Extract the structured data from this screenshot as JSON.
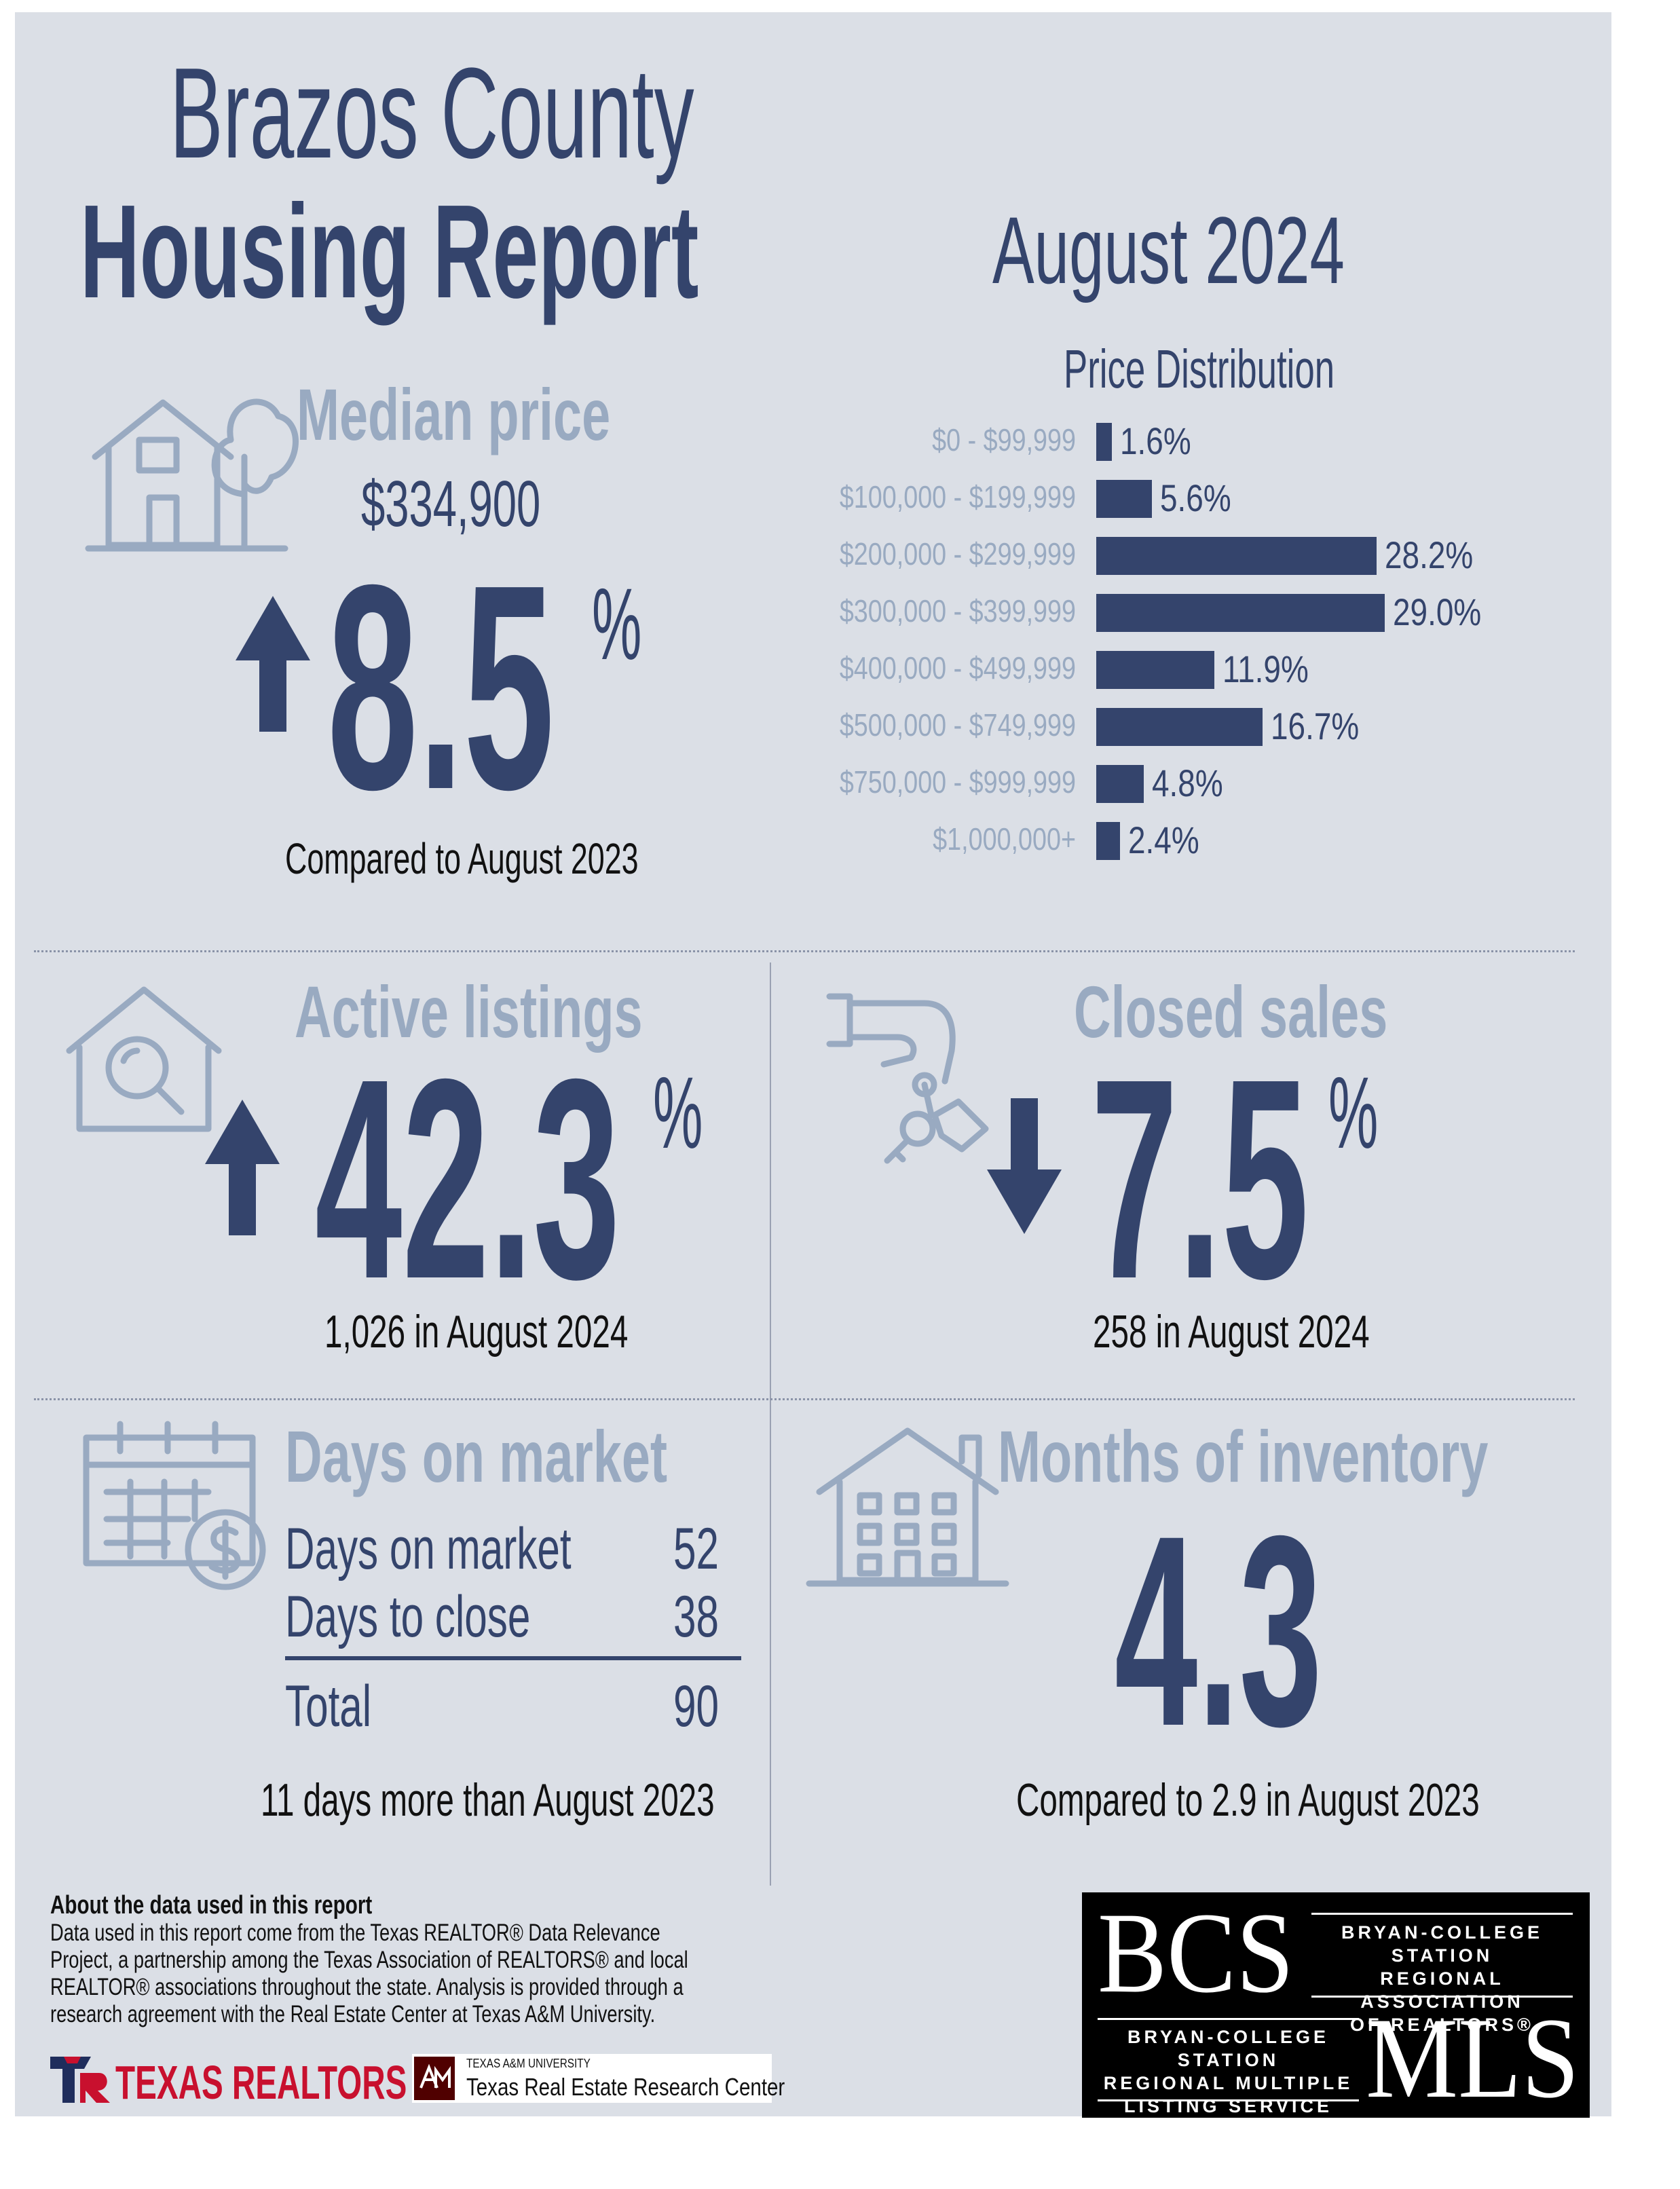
{
  "title": {
    "line1": "Brazos County",
    "line2": "Housing Report"
  },
  "period": "August 2024",
  "median": {
    "heading": "Median price",
    "value": "$334,900",
    "change": "8.5",
    "unit": "%",
    "direction": "up",
    "note": "Compared to August 2023",
    "icon": "house-tree-icon"
  },
  "price_distribution": {
    "heading": "Price Distribution",
    "rows": [
      {
        "label": "$0 - $99,999",
        "pct": "1.6%"
      },
      {
        "label": "$100,000 - $199,999",
        "pct": "5.6%"
      },
      {
        "label": "$200,000 - $299,999",
        "pct": "28.2%"
      },
      {
        "label": "$300,000 - $399,999",
        "pct": "29.0%"
      },
      {
        "label": "$400,000 - $499,999",
        "pct": "11.9%"
      },
      {
        "label": "$500,000 - $749,999",
        "pct": "16.7%"
      },
      {
        "label": "$750,000 - $999,999",
        "pct": "4.8%"
      },
      {
        "label": "$1,000,000+",
        "pct": "2.4%"
      }
    ]
  },
  "chart_data": {
    "type": "bar",
    "orientation": "horizontal",
    "title": "Price Distribution",
    "categories": [
      "$0 - $99,999",
      "$100,000 - $199,999",
      "$200,000 - $299,999",
      "$300,000 - $399,999",
      "$400,000 - $499,999",
      "$500,000 - $749,999",
      "$750,000 - $999,999",
      "$1,000,000+"
    ],
    "values": [
      1.6,
      5.6,
      28.2,
      29.0,
      11.9,
      16.7,
      4.8,
      2.4
    ],
    "grid": false,
    "color": "#34446c"
  },
  "active": {
    "heading": "Active listings",
    "change": "42.3",
    "unit": "%",
    "direction": "up",
    "note": "1,026 in August 2024",
    "icon": "house-search-icon"
  },
  "closed": {
    "heading": "Closed sales",
    "change": "7.5",
    "unit": "%",
    "direction": "down",
    "note": "258 in August 2024",
    "icon": "hand-keys-icon"
  },
  "dom": {
    "heading": "Days on market",
    "rows": [
      {
        "label": "Days on market",
        "value": "52"
      },
      {
        "label": "Days to close",
        "value": "38"
      }
    ],
    "total_label": "Total",
    "total_value": "90",
    "note": "11 days more than August 2023",
    "icon": "calendar-dollar-icon"
  },
  "inventory": {
    "heading": "Months of inventory",
    "value": "4.3",
    "note": "Compared to 2.9 in August 2023",
    "icon": "building-icon"
  },
  "about": {
    "heading": "About the data used in this report",
    "body": "Data used in this report come from the Texas REALTOR® Data Relevance Project, a partnership among the Texas Association of REALTORS® and local REALTOR® associations throughout the state. Analysis is provided through a research agreement with the Real Estate Center at Texas A&M University."
  },
  "logos": {
    "texas_realtors": "TEXAS REALTORS",
    "tamu_small": "TEXAS A&M UNIVERSITY",
    "tamu_center": "Texas Real Estate Research Center",
    "bcs": "BCS",
    "bcs_assoc": [
      "BRYAN-COLLEGE STATION",
      "REGIONAL ASSOCIATION",
      "OF REALTORS®"
    ],
    "mls_assoc": [
      "BRYAN-COLLEGE STATION",
      "REGIONAL MULTIPLE",
      "LISTING SERVICE"
    ],
    "mls": "MLS"
  },
  "colors": {
    "navy": "#34446c",
    "light": "#99aac1",
    "background": "#dbdfe6"
  }
}
